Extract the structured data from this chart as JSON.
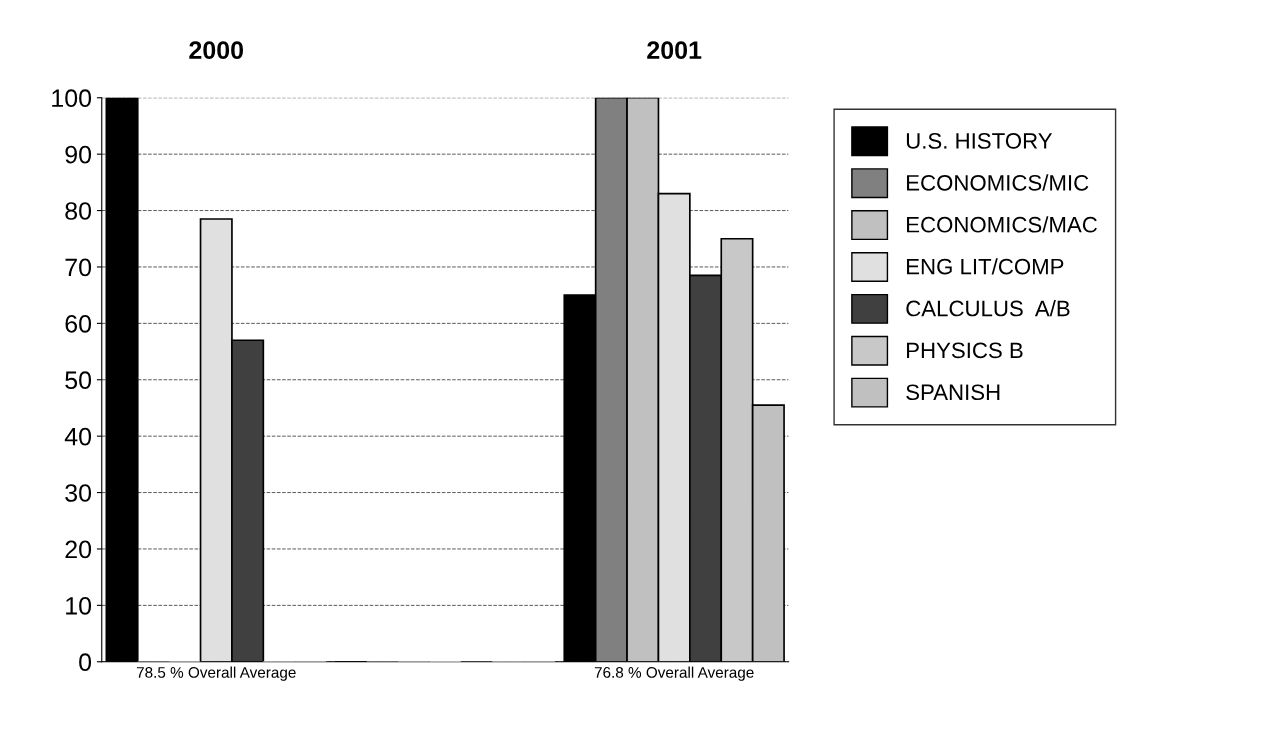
{
  "chart_data": {
    "type": "bar",
    "categories": [
      "78.5 % Overall Average",
      null,
      "76.8 % Overall Average"
    ],
    "series": [
      {
        "name": "U.S. HISTORY",
        "color": "#000000",
        "values": [
          100,
          0,
          65
        ]
      },
      {
        "name": "ECONOMICS/MIC",
        "color": "#808080",
        "values": [
          0,
          0,
          100
        ]
      },
      {
        "name": "ECONOMICS/MAC",
        "color": "#c0c0c0",
        "values": [
          0,
          0,
          100
        ]
      },
      {
        "name": "ENG LIT/COMP",
        "color": "#e0e0e0",
        "values": [
          78.5,
          0,
          83
        ]
      },
      {
        "name": "CALCULUS  A/B",
        "color": "#404040",
        "values": [
          57,
          0,
          68.5
        ]
      },
      {
        "name": "PHYSICS B",
        "color": "#c8c8c8",
        "values": [
          0,
          0,
          75
        ]
      },
      {
        "name": "SPANISH",
        "color": "#c0c0c0",
        "values": [
          0,
          0,
          45.5
        ]
      }
    ],
    "annotations": [
      "2000",
      "2001"
    ],
    "ylim": [
      0,
      100
    ],
    "yticks": [
      0,
      10,
      20,
      30,
      40,
      50,
      60,
      70,
      80,
      90,
      100
    ],
    "grid": "y",
    "legend": "right"
  }
}
